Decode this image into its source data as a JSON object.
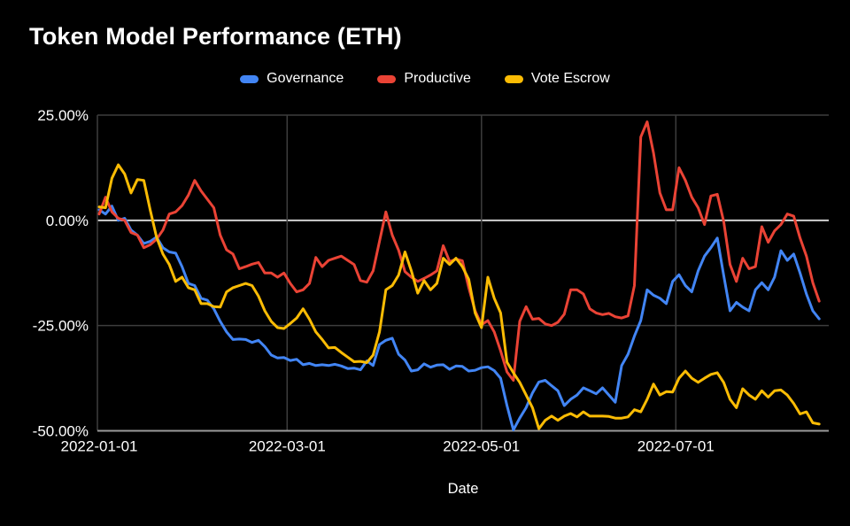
{
  "page": {
    "background_color": "#000000",
    "text_color": "#ffffff"
  },
  "chart_data": {
    "type": "line",
    "title": "Token Model Performance (ETH)",
    "xlabel": "Date",
    "ylabel": "",
    "grid": true,
    "legend_position": "top",
    "ylim": [
      -50,
      25
    ],
    "xlim_days": [
      0,
      229
    ],
    "start_date": "2022-01-01",
    "interval_days": 2,
    "colors": {
      "zero_line": "#cfcfcf",
      "gridline": "#3d3d3d",
      "axis_line": "#9a9a9a"
    },
    "y_ticks": [
      {
        "label": "25.00%",
        "value": 25
      },
      {
        "label": "0.00%",
        "value": 0
      },
      {
        "label": "-25.00%",
        "value": -25
      },
      {
        "label": "-50.00%",
        "value": -50
      }
    ],
    "x_ticks": [
      {
        "label": "2022-01-01",
        "day": 0
      },
      {
        "label": "2022-03-01",
        "day": 59
      },
      {
        "label": "2022-05-01",
        "day": 120
      },
      {
        "label": "2022-07-01",
        "day": 181
      }
    ],
    "series": [
      {
        "name": "Governance",
        "color": "#4285F4",
        "values": [
          2.5,
          1.5,
          3.4,
          0,
          0.5,
          -2.3,
          -3.5,
          -5.5,
          -5,
          -4,
          -6.5,
          -7.5,
          -7.8,
          -11,
          -15,
          -15.5,
          -18.5,
          -19,
          -21,
          -24,
          -26.5,
          -28.3,
          -28.2,
          -28.3,
          -29,
          -28.5,
          -30,
          -32,
          -32.7,
          -32.6,
          -33.3,
          -33,
          -34.3,
          -34,
          -34.5,
          -34.3,
          -34.5,
          -34.2,
          -34.6,
          -35.2,
          -35.1,
          -35.5,
          -33.4,
          -34.5,
          -29.5,
          -28.5,
          -28,
          -31.8,
          -33.2,
          -35.8,
          -35.5,
          -34.1,
          -34.9,
          -34.4,
          -34.3,
          -35.4,
          -34.6,
          -34.7,
          -35.8,
          -35.6,
          -35,
          -34.8,
          -35.7,
          -37.5,
          -44,
          -49.8,
          -47,
          -44.5,
          -41,
          -38.4,
          -38,
          -39.3,
          -40.5,
          -44,
          -42.5,
          -41.5,
          -39.8,
          -40.5,
          -41.2,
          -39.8,
          -41.5,
          -43.2,
          -34.5,
          -31.8,
          -27.5,
          -23.8,
          -16.5,
          -17.8,
          -18.5,
          -19.8,
          -14.5,
          -12.9,
          -15.5,
          -17,
          -12,
          -8.5,
          -6.5,
          -4.2,
          -13,
          -21.5,
          -19.5,
          -20.6,
          -21.5,
          -16.5,
          -14.8,
          -16.5,
          -13.5,
          -7.2,
          -9.5,
          -8,
          -12.5,
          -17.5,
          -21.5,
          -23.4
        ]
      },
      {
        "name": "Productive",
        "color": "#EA4335",
        "values": [
          1.5,
          5.5,
          2,
          0.5,
          0,
          -2.9,
          -3.5,
          -6.5,
          -5.8,
          -4.5,
          -2.3,
          1.5,
          2,
          3.5,
          6,
          9.5,
          7,
          5,
          3,
          -3.5,
          -7,
          -8,
          -11.5,
          -11,
          -10.4,
          -10,
          -12.5,
          -12.5,
          -13.5,
          -12.5,
          -15,
          -17,
          -16.5,
          -15,
          -8.8,
          -11,
          -9.5,
          -9,
          -8.5,
          -9.5,
          -10.5,
          -14.3,
          -14.7,
          -12,
          -5,
          2,
          -3.5,
          -7.1,
          -12.2,
          -13.5,
          -14.5,
          -13.8,
          -13,
          -12,
          -6,
          -9.8,
          -9.2,
          -9.6,
          -16,
          -21.5,
          -24.8,
          -23.8,
          -26.5,
          -31,
          -36,
          -38,
          -24,
          -20.5,
          -23.5,
          -23.3,
          -24.6,
          -25,
          -24.2,
          -22.3,
          -16.5,
          -16.5,
          -17.5,
          -21,
          -22,
          -22.4,
          -22.1,
          -22.9,
          -23.2,
          -22.7,
          -15.5,
          19.8,
          23.4,
          16,
          6.5,
          2.5,
          2.5,
          12.5,
          9.5,
          5.5,
          3,
          -1,
          5.8,
          6.2,
          -0.2,
          -10.5,
          -14.5,
          -9,
          -11.5,
          -11,
          -1.5,
          -5.2,
          -2.5,
          -1,
          1.5,
          1,
          -4.2,
          -8.5,
          -14.8,
          -19.2
        ]
      },
      {
        "name": "Vote Escrow",
        "color": "#FBBC04",
        "values": [
          3.2,
          3,
          10,
          13.2,
          11,
          6.5,
          9.7,
          9.5,
          2.5,
          -4,
          -8,
          -10.5,
          -14.5,
          -13.5,
          -16,
          -16.5,
          -19.8,
          -19.8,
          -20.5,
          -20.6,
          -17,
          -16,
          -15.5,
          -15,
          -15.5,
          -18,
          -21.5,
          -24,
          -25.5,
          -25.7,
          -24.5,
          -23.2,
          -21,
          -23.5,
          -26.5,
          -28.3,
          -30.3,
          -30.2,
          -31.4,
          -32.5,
          -33.6,
          -33.5,
          -33.8,
          -32,
          -26.5,
          -16.5,
          -15.5,
          -13,
          -7.5,
          -12,
          -17.3,
          -14.3,
          -16.5,
          -15,
          -9,
          -10.5,
          -9,
          -11,
          -14,
          -22,
          -25.5,
          -13.5,
          -18.5,
          -22,
          -33.7,
          -36.2,
          -38.5,
          -41.5,
          -44.5,
          -49.5,
          -47.5,
          -46.5,
          -47.5,
          -46.5,
          -45.9,
          -46.7,
          -45.5,
          -46.5,
          -46.5,
          -46.5,
          -46.6,
          -47,
          -47,
          -46.7,
          -45,
          -45.5,
          -42.5,
          -38.9,
          -41.5,
          -40.7,
          -40.8,
          -37.5,
          -35.8,
          -37.5,
          -38.5,
          -37.5,
          -36.6,
          -36.2,
          -38.5,
          -42.5,
          -44.5,
          -40,
          -41.5,
          -42.5,
          -40.5,
          -42,
          -40.5,
          -40.3,
          -41.5,
          -43.5,
          -46,
          -45.5,
          -48.1,
          -48.4
        ]
      }
    ]
  }
}
